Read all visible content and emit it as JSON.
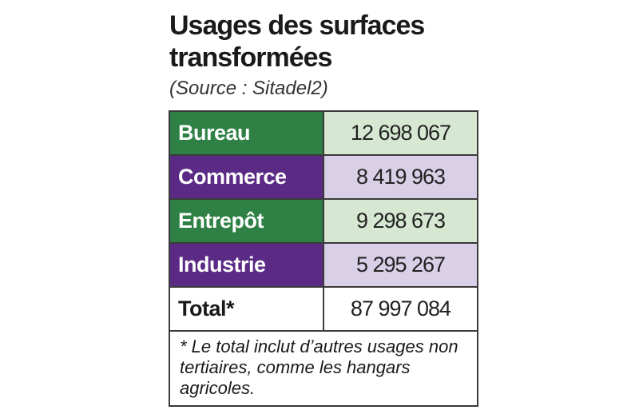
{
  "title": "Usages des surfaces transformées",
  "source": "(Source : Sitadel2)",
  "rows": [
    {
      "label": "Bureau",
      "value": "12 698 067",
      "color_label": "#2e8045",
      "color_value": "#d6e8d2"
    },
    {
      "label": "Commerce",
      "value": "8 419 963",
      "color_label": "#5b2a85",
      "color_value": "#d9cfe7"
    },
    {
      "label": "Entrepôt",
      "value": "9 298 673",
      "color_label": "#2e8045",
      "color_value": "#d6e8d2"
    },
    {
      "label": "Industrie",
      "value": "5 295 267",
      "color_label": "#5b2a85",
      "color_value": "#d9cfe7"
    }
  ],
  "total": {
    "label": "Total*",
    "value": "87 997 084"
  },
  "footnote": "* Le total inclut d’autres usages non tertiaires, comme les hangars agricoles."
}
